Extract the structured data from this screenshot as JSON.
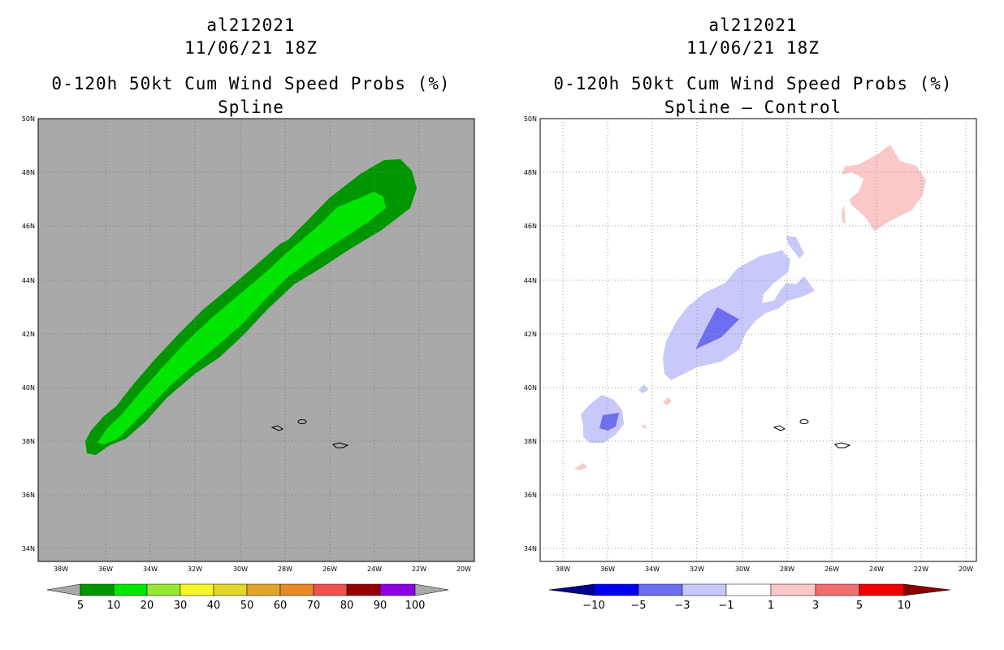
{
  "left_panel": {
    "storm_id": "al212021",
    "datetime": "11/06/21 18Z",
    "product": "0-120h 50kt Cum Wind Speed Probs (%)",
    "subtitle": "Spline",
    "background_color": "#a9a9a9",
    "colorbar": {
      "labels": [
        "5",
        "10",
        "20",
        "30",
        "40",
        "50",
        "60",
        "70",
        "80",
        "90",
        "100"
      ],
      "colors": [
        "#009600",
        "#00e600",
        "#98e634",
        "#f5f528",
        "#e1d728",
        "#e1a529",
        "#e68a28",
        "#f05050",
        "#960000",
        "#8c00e6"
      ]
    }
  },
  "right_panel": {
    "storm_id": "al212021",
    "datetime": "11/06/21 18Z",
    "product": "0-120h 50kt Cum Wind Speed Probs (%)",
    "subtitle": "Spline – Control",
    "background_color": "#ffffff",
    "colorbar": {
      "labels": [
        "−10",
        "−5",
        "−3",
        "−1",
        "1",
        "3",
        "5",
        "10"
      ],
      "colors": [
        "#00008c",
        "#0000f0",
        "#6e6ef0",
        "#c8c8fa",
        "#ffffff",
        "#fac8c8",
        "#f06e6e",
        "#f00000",
        "#8c0000"
      ]
    }
  },
  "map_axes": {
    "lat_labels": [
      "50N",
      "48N",
      "46N",
      "44N",
      "42N",
      "40N",
      "38N",
      "36N",
      "34N"
    ],
    "lon_labels": [
      "38W",
      "36W",
      "34W",
      "32W",
      "30W",
      "28W",
      "26W",
      "24W",
      "22W",
      "20W"
    ]
  }
}
